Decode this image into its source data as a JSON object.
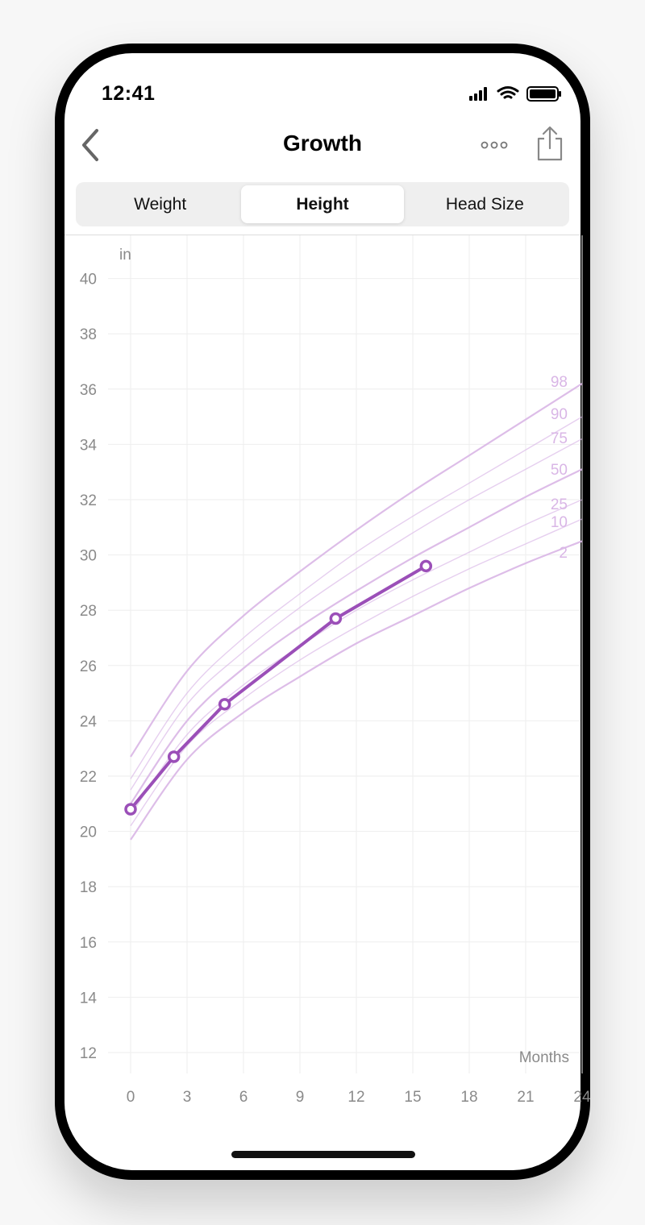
{
  "status_bar": {
    "time": "12:41",
    "icons": [
      "cellular-icon",
      "wifi-icon",
      "battery-icon"
    ]
  },
  "nav": {
    "title": "Growth",
    "back_icon": "chevron-left-icon",
    "more_icon": "ellipsis-icon",
    "share_icon": "share-icon"
  },
  "tabs": [
    {
      "label": "Weight",
      "active": false
    },
    {
      "label": "Height",
      "active": true
    },
    {
      "label": "Head Size",
      "active": false
    }
  ],
  "colors": {
    "accent": "#9b4fb8",
    "percentile": "#d9b6e6",
    "grid": "#eeeeee",
    "axis_text": "#8a8a8a"
  },
  "chart_data": {
    "type": "line",
    "ylabel": "in",
    "xlabel": "Months",
    "ylim": [
      12,
      40
    ],
    "xlim": [
      0,
      24
    ],
    "y_ticks": [
      "12",
      "14",
      "16",
      "18",
      "20",
      "22",
      "24",
      "26",
      "28",
      "30",
      "32",
      "34",
      "36",
      "38",
      "40"
    ],
    "x_ticks": [
      "0",
      "3",
      "6",
      "9",
      "12",
      "15",
      "18",
      "21",
      "24"
    ],
    "grid": true,
    "percentiles": [
      {
        "label": "98",
        "values": [
          [
            0,
            22.7
          ],
          [
            3,
            25.8
          ],
          [
            6,
            27.8
          ],
          [
            9,
            29.4
          ],
          [
            12,
            30.9
          ],
          [
            15,
            32.3
          ],
          [
            18,
            33.6
          ],
          [
            21,
            34.9
          ],
          [
            24,
            36.2
          ]
        ]
      },
      {
        "label": "90",
        "values": [
          [
            0,
            21.9
          ],
          [
            3,
            25.0
          ],
          [
            6,
            27.0
          ],
          [
            9,
            28.6
          ],
          [
            12,
            30.1
          ],
          [
            15,
            31.4
          ],
          [
            18,
            32.6
          ],
          [
            21,
            33.8
          ],
          [
            24,
            35.0
          ]
        ]
      },
      {
        "label": "75",
        "values": [
          [
            0,
            21.5
          ],
          [
            3,
            24.6
          ],
          [
            6,
            26.5
          ],
          [
            9,
            28.1
          ],
          [
            12,
            29.5
          ],
          [
            15,
            30.8
          ],
          [
            18,
            32.0
          ],
          [
            21,
            33.1
          ],
          [
            24,
            34.2
          ]
        ]
      },
      {
        "label": "50",
        "values": [
          [
            0,
            21.0
          ],
          [
            3,
            24.0
          ],
          [
            6,
            25.9
          ],
          [
            9,
            27.4
          ],
          [
            12,
            28.7
          ],
          [
            15,
            29.9
          ],
          [
            18,
            31.0
          ],
          [
            21,
            32.1
          ],
          [
            24,
            33.1
          ]
        ]
      },
      {
        "label": "25",
        "values": [
          [
            0,
            20.6
          ],
          [
            3,
            23.5
          ],
          [
            6,
            25.3
          ],
          [
            9,
            26.7
          ],
          [
            12,
            28.0
          ],
          [
            15,
            29.1
          ],
          [
            18,
            30.1
          ],
          [
            21,
            31.1
          ],
          [
            24,
            32.0
          ]
        ]
      },
      {
        "label": "10",
        "values": [
          [
            0,
            20.2
          ],
          [
            3,
            23.1
          ],
          [
            6,
            24.8
          ],
          [
            9,
            26.2
          ],
          [
            12,
            27.4
          ],
          [
            15,
            28.5
          ],
          [
            18,
            29.5
          ],
          [
            21,
            30.4
          ],
          [
            24,
            31.3
          ]
        ]
      },
      {
        "label": "2",
        "values": [
          [
            0,
            19.7
          ],
          [
            3,
            22.6
          ],
          [
            6,
            24.3
          ],
          [
            9,
            25.6
          ],
          [
            12,
            26.8
          ],
          [
            15,
            27.8
          ],
          [
            18,
            28.8
          ],
          [
            21,
            29.7
          ],
          [
            24,
            30.5
          ]
        ]
      }
    ],
    "series": [
      {
        "values": [
          [
            0,
            20.8
          ],
          [
            2.3,
            22.7
          ],
          [
            5.0,
            24.6
          ],
          [
            10.9,
            27.7
          ],
          [
            15.7,
            29.6
          ]
        ]
      }
    ]
  }
}
